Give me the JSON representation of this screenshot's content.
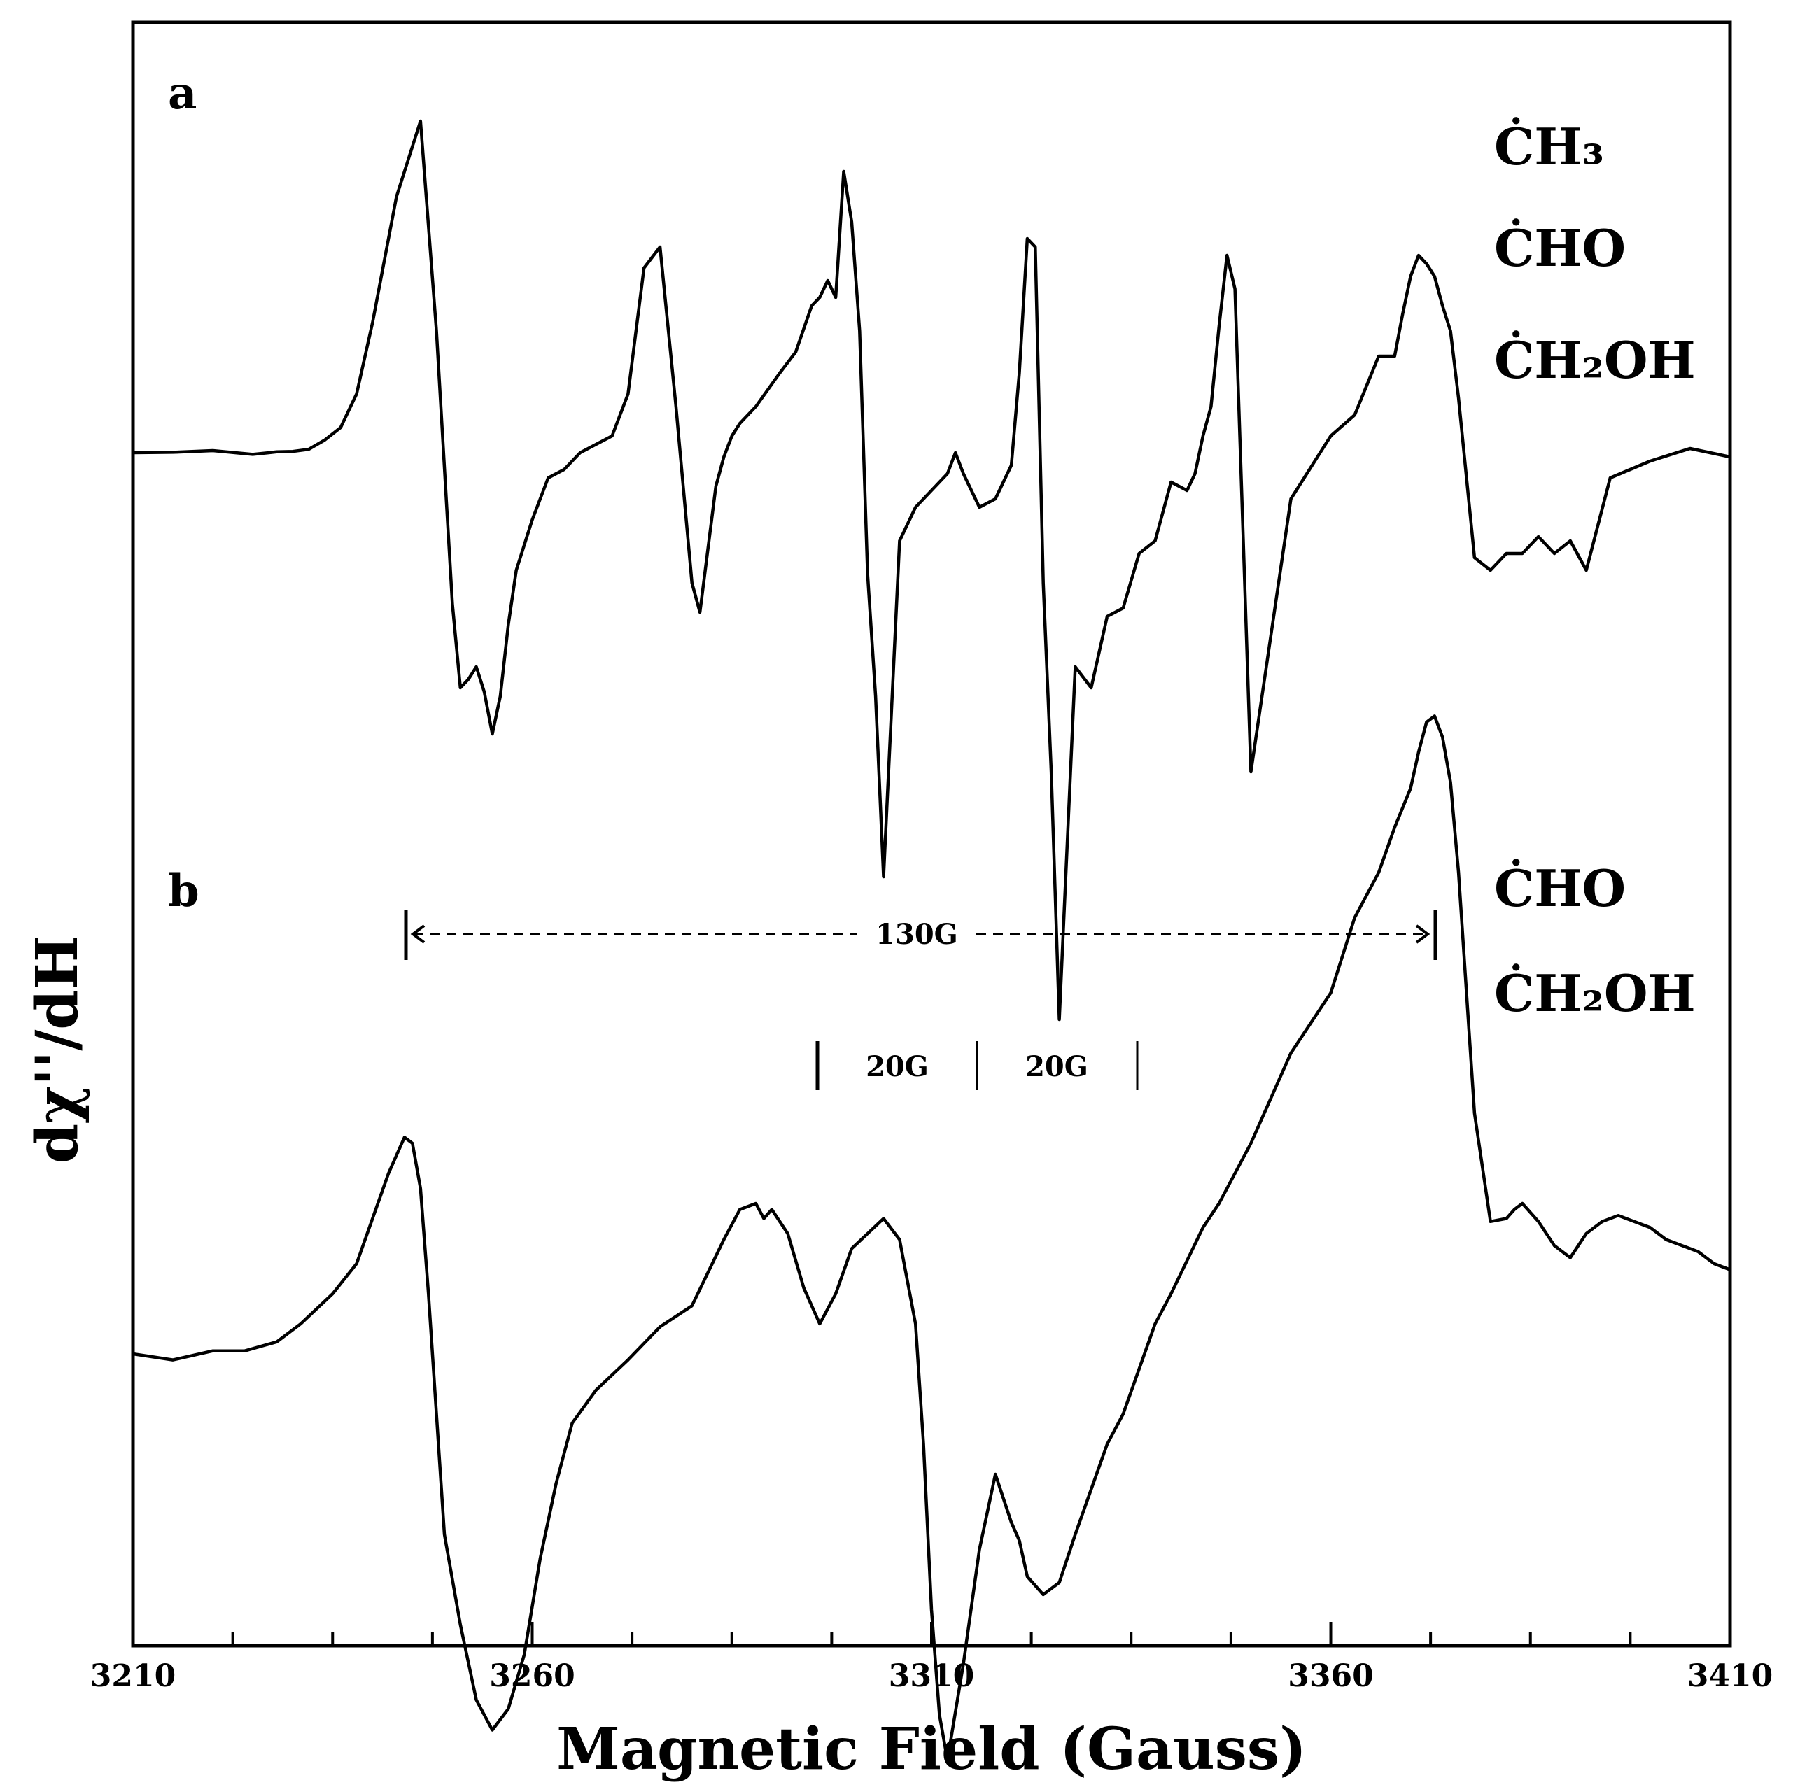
{
  "chart_data": {
    "type": "line",
    "title": "",
    "xlabel": "Magnetic Field (Gauss)",
    "ylabel": "dχ''/dH",
    "xlim": [
      3210,
      3410
    ],
    "x_ticks": [
      3210,
      3260,
      3310,
      3360,
      3410
    ],
    "x_tick_labels": [
      "3210",
      "3260",
      "3310",
      "3360",
      "3410"
    ],
    "x_minor_tick_step": 12.5,
    "grid": false,
    "legend": "none",
    "panels": [
      {
        "label": "a",
        "species": [
          "ĊH₃",
          "ĊHO",
          "ĊH₂OH"
        ],
        "series": [
          {
            "name": "spectrum a",
            "x": [
              3210,
              3215,
              3220,
              3225,
              3228,
              3230,
              3232,
              3234,
              3236,
              3238,
              3240,
              3243,
              3246,
              3248,
              3250,
              3251,
              3252,
              3253,
              3254,
              3255,
              3256,
              3257,
              3258,
              3260,
              3262,
              3264,
              3266,
              3268,
              3270,
              3272,
              3274,
              3276,
              3278,
              3280,
              3281,
              3282,
              3283,
              3284,
              3285,
              3286,
              3288,
              3291,
              3293,
              3295,
              3296,
              3297,
              3298,
              3299,
              3300,
              3301,
              3302,
              3303,
              3304,
              3306,
              3308,
              3310,
              3312,
              3313,
              3314,
              3316,
              3318,
              3319,
              3320,
              3321,
              3322,
              3323,
              3324,
              3325,
              3326,
              3328,
              3330,
              3332,
              3334,
              3336,
              3338,
              3340,
              3342,
              3343,
              3344,
              3345,
              3346,
              3347,
              3348,
              3350,
              3355,
              3360,
              3363,
              3366,
              3368,
              3369,
              3370,
              3371,
              3372,
              3373,
              3374,
              3375,
              3376,
              3378,
              3380,
              3382,
              3384,
              3386,
              3388,
              3390,
              3392,
              3395,
              3400,
              3405,
              3410
            ],
            "y": [
              1.0,
              1.1,
              1.5,
              0.6,
              1.2,
              1.3,
              1.8,
              4.0,
              7.0,
              15.0,
              32.0,
              62.0,
              80.0,
              30.0,
              -35.0,
              -55.0,
              -53.0,
              -50.0,
              -56.0,
              -66.0,
              -57.0,
              -40.0,
              -27.0,
              -15.0,
              -5.0,
              -3.0,
              1.0,
              3.0,
              5.0,
              15.0,
              45.0,
              50.0,
              12.0,
              -30.0,
              -37.0,
              -22.0,
              -7.0,
              0.0,
              5.0,
              8.0,
              12.0,
              20.0,
              25.0,
              36.0,
              38.0,
              42.0,
              38.0,
              68.0,
              56.0,
              30.0,
              -28.0,
              -57.0,
              -100.0,
              -20.0,
              -12.0,
              -8.0,
              -4.0,
              1.0,
              -4.0,
              -12.0,
              -10.0,
              -6.0,
              -2.0,
              20.0,
              52.0,
              50.0,
              -30.0,
              -75.0,
              -134.0,
              -50.0,
              -55.0,
              -38.0,
              -36.0,
              -23.0,
              -20.0,
              -6.0,
              -8.0,
              -4.0,
              5.0,
              12.0,
              31.0,
              48.0,
              40.0,
              -75.0,
              -10.0,
              5.0,
              10.0,
              24.0,
              24.0,
              34.0,
              43.0,
              48.0,
              46.0,
              43.0,
              36.0,
              30.0,
              14.0,
              -24.0,
              -27.0,
              -23.0,
              -23.0,
              -19.0,
              -23.0,
              -20.0,
              -27.0,
              -5.0,
              -1.0,
              2.0,
              0.0
            ]
          }
        ]
      },
      {
        "label": "b",
        "species": [
          "ĊHO",
          "ĊH₂OH"
        ],
        "annotations": {
          "wide_splitting": "130G",
          "narrow_splittings": [
            "20G",
            "20G"
          ],
          "wide_marker_x": [
            3244,
            3372
          ],
          "narrow_marker_x": [
            3295,
            3315,
            3335
          ]
        },
        "series": [
          {
            "name": "spectrum b",
            "x": [
              3210,
              3215,
              3220,
              3224,
              3228,
              3231,
              3235,
              3238,
              3242,
              3244,
              3245,
              3246,
              3247,
              3249,
              3251,
              3253,
              3255,
              3257,
              3259,
              3261,
              3263,
              3265,
              3268,
              3272,
              3276,
              3280,
              3284,
              3286,
              3288,
              3289,
              3290,
              3292,
              3294,
              3296,
              3298,
              3300,
              3302,
              3304,
              3306,
              3308,
              3309,
              3310,
              3311,
              3312,
              3314,
              3316,
              3318,
              3320,
              3321,
              3322,
              3324,
              3326,
              3328,
              3330,
              3332,
              3334,
              3336,
              3338,
              3340,
              3342,
              3344,
              3346,
              3348,
              3350,
              3352,
              3355,
              3360,
              3363,
              3366,
              3368,
              3370,
              3371,
              3372,
              3373,
              3374,
              3375,
              3376,
              3378,
              3380,
              3382,
              3383,
              3384,
              3386,
              3388,
              3390,
              3392,
              3394,
              3396,
              3398,
              3400,
              3402,
              3404,
              3406,
              3408,
              3410
            ],
            "y": [
              0.0,
              -2.0,
              1.0,
              1.0,
              4.0,
              10.0,
              20.0,
              30.0,
              60.0,
              72.0,
              70.0,
              55.0,
              20.0,
              -60.0,
              -90.0,
              -115.0,
              -125.0,
              -118.0,
              -100.0,
              -68.0,
              -43.0,
              -23.0,
              -12.0,
              -2.0,
              9.0,
              16.0,
              38.0,
              48.0,
              50.0,
              45.0,
              48.0,
              40.0,
              22.0,
              10.0,
              20.0,
              35.0,
              40.0,
              45.0,
              38.0,
              10.0,
              -30.0,
              -85.0,
              -120.0,
              -135.0,
              -103.0,
              -65.0,
              -40.0,
              -56.0,
              -62.0,
              -74.0,
              -80.0,
              -76.0,
              -60.0,
              -45.0,
              -30.0,
              -20.0,
              -5.0,
              10.0,
              20.0,
              31.0,
              42.0,
              50.0,
              60.0,
              70.0,
              82.0,
              100.0,
              120.0,
              145.0,
              160.0,
              175.0,
              188.0,
              200.0,
              210.0,
              212.0,
              205.0,
              190.0,
              160.0,
              80.0,
              44.0,
              45.0,
              48.0,
              50.0,
              44.0,
              36.0,
              32.0,
              40.0,
              44.0,
              46.0,
              44.0,
              42.0,
              38.0,
              36.0,
              34.0,
              30.0,
              28.0
            ]
          }
        ]
      }
    ]
  }
}
